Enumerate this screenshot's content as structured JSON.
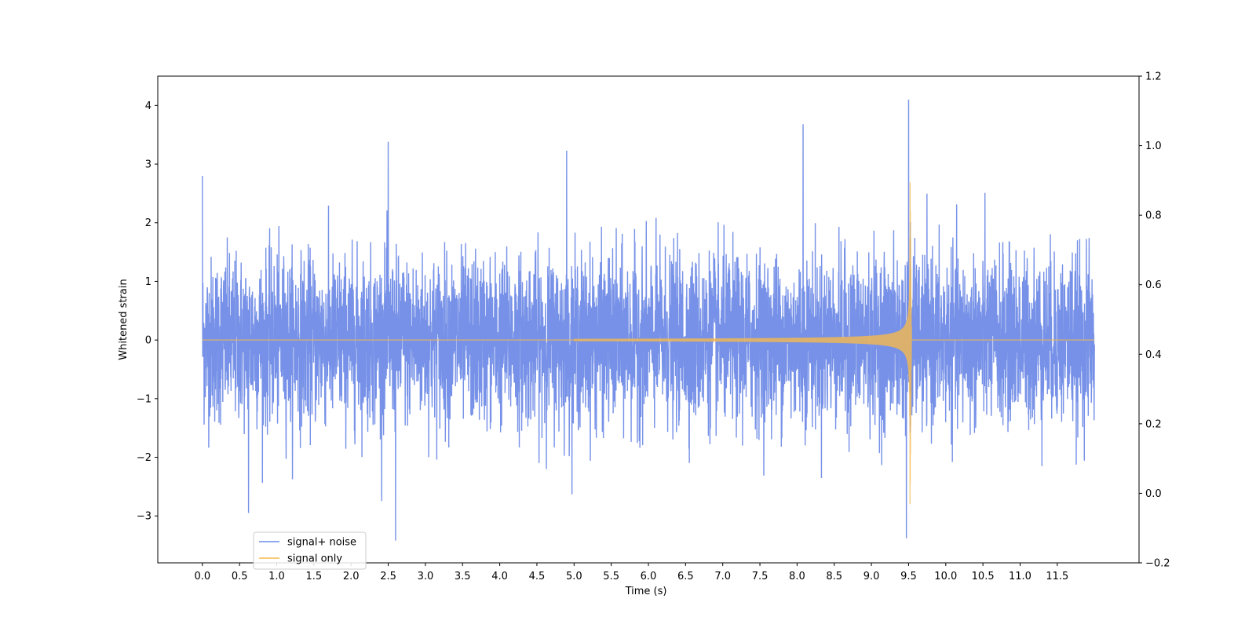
{
  "chart_data": {
    "type": "line",
    "xlabel": "Time (s)",
    "ylabel": "Whitened strain",
    "xlim": [
      -0.6,
      12.6
    ],
    "ylim": [
      -3.8,
      4.5
    ],
    "ylim_right": [
      -0.2,
      1.2
    ],
    "x_ticks": [
      0.0,
      0.5,
      1.0,
      1.5,
      2.0,
      2.5,
      3.0,
      3.5,
      4.0,
      4.5,
      5.0,
      5.5,
      6.0,
      6.5,
      7.0,
      7.5,
      8.0,
      8.5,
      9.0,
      9.5,
      10.0,
      10.5,
      11.0,
      11.5
    ],
    "x_tick_labels": [
      "0.0",
      "0.5",
      "1.0",
      "1.5",
      "2.0",
      "2.5",
      "3.0",
      "3.5",
      "4.0",
      "4.5",
      "5.0",
      "5.5",
      "6.0",
      "6.5",
      "7.0",
      "7.5",
      "8.0",
      "8.5",
      "9.0",
      "9.5",
      "10.0",
      "10.5",
      "11.0",
      "11.5"
    ],
    "y_ticks": [
      -3,
      -2,
      -1,
      0,
      1,
      2,
      3,
      4
    ],
    "y_tick_labels": [
      "−3",
      "−2",
      "−1",
      "0",
      "1",
      "2",
      "3",
      "4"
    ],
    "y_right_ticks": [
      -0.2,
      0.0,
      0.2,
      0.4,
      0.6,
      0.8,
      1.0,
      1.2
    ],
    "y_right_tick_labels": [
      "−0.2",
      "0.0",
      "0.2",
      "0.4",
      "0.6",
      "0.8",
      "1.0",
      "1.2"
    ],
    "legend_position": "lower-left",
    "grid": false,
    "series": [
      {
        "name": "signal+ noise",
        "color": "#6f8be6",
        "x_range": [
          0.0,
          12.0
        ],
        "noise_std": 0.7,
        "notable_peaks": [
          {
            "x": 0.0,
            "y": 2.8
          },
          {
            "x": 0.62,
            "y": -2.95
          },
          {
            "x": 2.5,
            "y": 3.38
          },
          {
            "x": 2.6,
            "y": -3.42
          },
          {
            "x": 4.9,
            "y": 3.23
          },
          {
            "x": 8.08,
            "y": 3.68
          },
          {
            "x": 9.5,
            "y": 4.1
          },
          {
            "x": 9.47,
            "y": -3.38
          }
        ]
      },
      {
        "name": "signal only",
        "color": "#f5b94f",
        "x_range": [
          0.0,
          12.0
        ],
        "merger_time": 9.52,
        "peak_amplitude": 2.8,
        "chirp_start": 5.0
      }
    ]
  }
}
